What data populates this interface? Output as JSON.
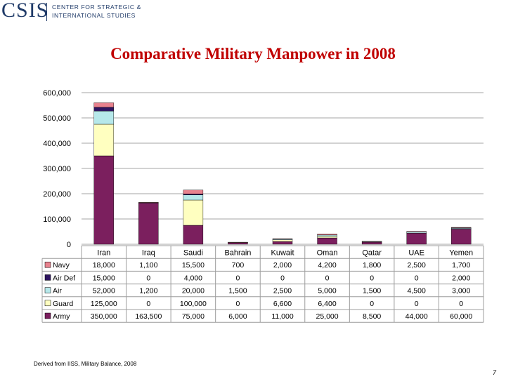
{
  "header": {
    "logo_mark": "CSIS",
    "logo_line1": "CENTER FOR STRATEGIC &",
    "logo_line2": "INTERNATIONAL STUDIES"
  },
  "title": "Comparative Military Manpower in 2008",
  "source": "Derived from IISS, Military Balance, 2008",
  "page_number": "7",
  "chart_data": {
    "type": "bar",
    "stacked": true,
    "categories": [
      "Iran",
      "Iraq",
      "Saudi",
      "Bahrain",
      "Kuwait",
      "Oman",
      "Qatar",
      "UAE",
      "Yemen"
    ],
    "ylim": [
      0,
      600000
    ],
    "yticks": [
      0,
      100000,
      200000,
      300000,
      400000,
      500000,
      600000
    ],
    "ytick_labels": [
      "0",
      "100,000",
      "200,000",
      "300,000",
      "400,000",
      "500,000",
      "600,000"
    ],
    "grid": true,
    "legend": "data-table",
    "series": [
      {
        "name": "Army",
        "color": "#7b1f5e",
        "values": [
          350000,
          163500,
          75000,
          6000,
          11000,
          25000,
          8500,
          44000,
          60000
        ],
        "labels": [
          "350,000",
          "163,500",
          "75,000",
          "6,000",
          "11,000",
          "25,000",
          "8,500",
          "44,000",
          "60,000"
        ]
      },
      {
        "name": "Guard",
        "color": "#ffffc0",
        "values": [
          125000,
          0,
          100000,
          0,
          6600,
          6400,
          0,
          0,
          0
        ],
        "labels": [
          "125,000",
          "0",
          "100,000",
          "0",
          "6,600",
          "6,400",
          "0",
          "0",
          "0"
        ]
      },
      {
        "name": "Air",
        "color": "#b6e8ea",
        "values": [
          52000,
          1200,
          20000,
          1500,
          2500,
          5000,
          1500,
          4500,
          3000
        ],
        "labels": [
          "52,000",
          "1,200",
          "20,000",
          "1,500",
          "2,500",
          "5,000",
          "1,500",
          "4,500",
          "3,000"
        ]
      },
      {
        "name": "Air Def",
        "color": "#2e1460",
        "values": [
          15000,
          0,
          4000,
          0,
          0,
          0,
          0,
          0,
          2000
        ],
        "labels": [
          "15,000",
          "0",
          "4,000",
          "0",
          "0",
          "0",
          "0",
          "0",
          "2,000"
        ]
      },
      {
        "name": "Navy",
        "color": "#e8828e",
        "values": [
          18000,
          1100,
          15500,
          700,
          2000,
          4200,
          1800,
          2500,
          1700
        ],
        "labels": [
          "18,000",
          "1,100",
          "15,500",
          "700",
          "2,000",
          "4,200",
          "1,800",
          "2,500",
          "1,700"
        ]
      }
    ],
    "table_row_order": [
      "Navy",
      "Air Def",
      "Air",
      "Guard",
      "Army"
    ]
  }
}
